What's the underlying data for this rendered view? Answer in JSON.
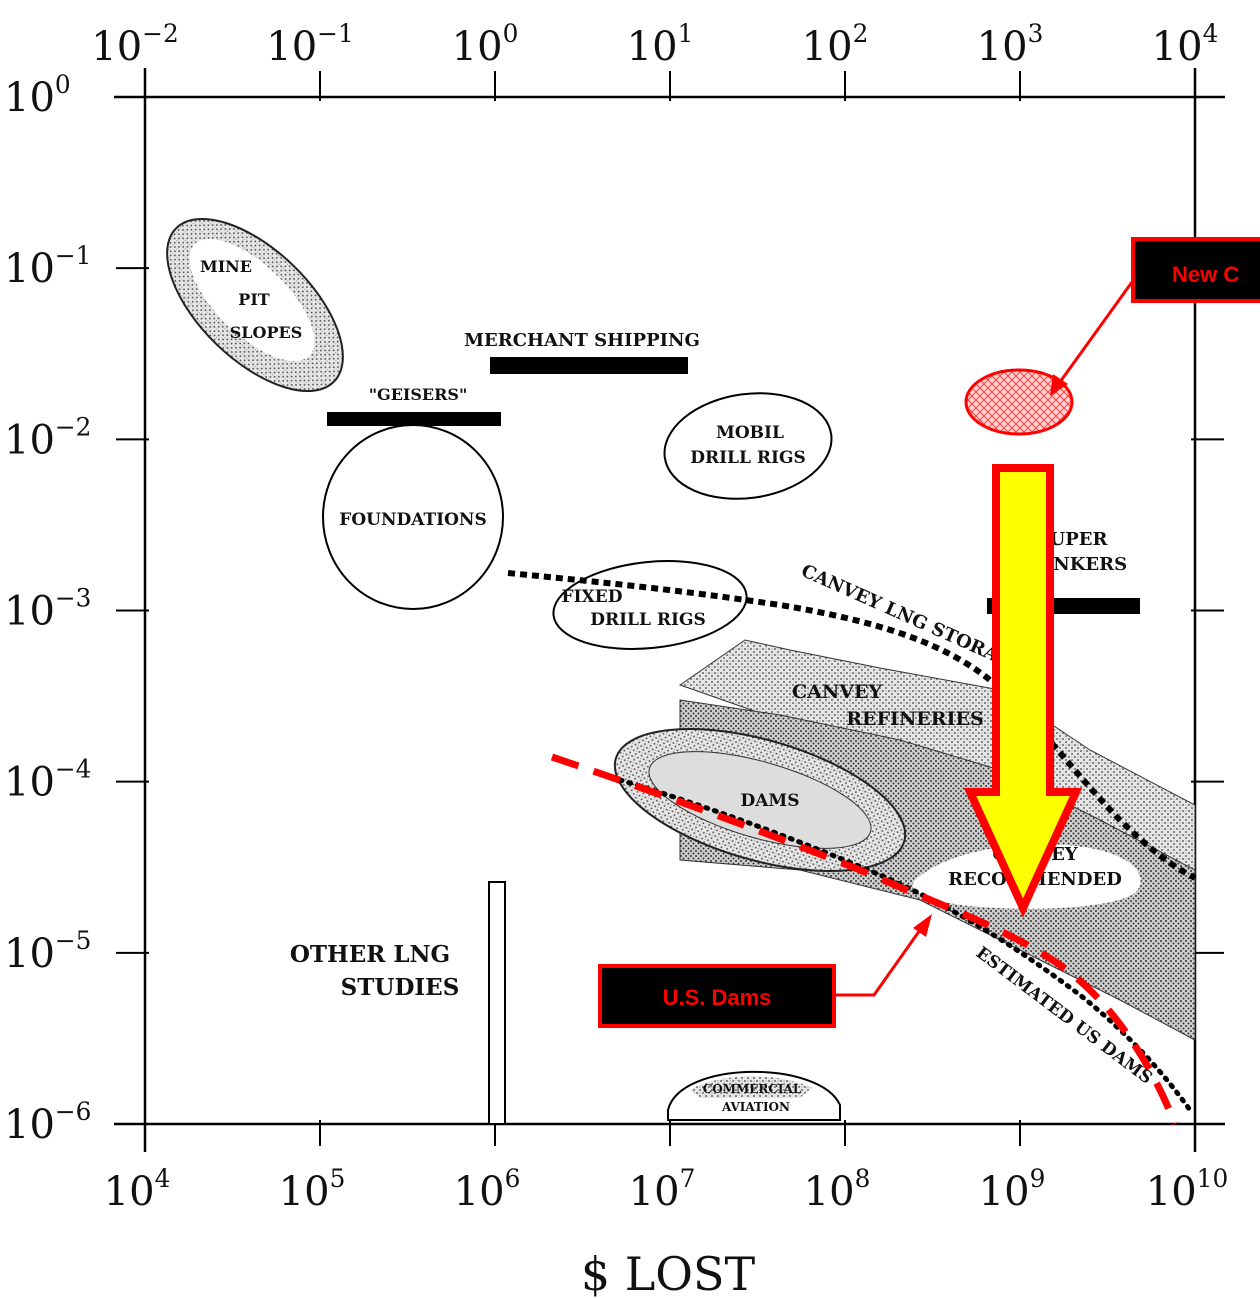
{
  "chart_data": {
    "type": "scatter",
    "title": "",
    "xlabel": "$ LOST",
    "ylabel": "",
    "x_scale": "log",
    "y_scale": "log",
    "xlim": [
      10000,
      10000000000
    ],
    "ylim": [
      1e-06,
      1
    ],
    "top_axis_lim": [
      0.01,
      10000
    ],
    "grid": false,
    "bottom_ticks": [
      {
        "base": "10",
        "exp": "4",
        "value": 10000
      },
      {
        "base": "10",
        "exp": "5",
        "value": 100000
      },
      {
        "base": "10",
        "exp": "6",
        "value": 1000000
      },
      {
        "base": "10",
        "exp": "7",
        "value": 10000000
      },
      {
        "base": "10",
        "exp": "8",
        "value": 100000000
      },
      {
        "base": "10",
        "exp": "9",
        "value": 1000000000
      },
      {
        "base": "10",
        "exp": "10",
        "value": 10000000000
      }
    ],
    "top_ticks": [
      {
        "base": "10",
        "exp": "−2",
        "value": 0.01
      },
      {
        "base": "10",
        "exp": "−1",
        "value": 0.1
      },
      {
        "base": "10",
        "exp": "0",
        "value": 1
      },
      {
        "base": "10",
        "exp": "1",
        "value": 10
      },
      {
        "base": "10",
        "exp": "2",
        "value": 100
      },
      {
        "base": "10",
        "exp": "3",
        "value": 1000
      },
      {
        "base": "10",
        "exp": "4",
        "value": 10000
      }
    ],
    "left_ticks": [
      {
        "base": "10",
        "exp": "0",
        "value": 1
      },
      {
        "base": "10",
        "exp": "−1",
        "value": 0.1
      },
      {
        "base": "10",
        "exp": "−2",
        "value": 0.01
      },
      {
        "base": "10",
        "exp": "−3",
        "value": 0.001
      },
      {
        "base": "10",
        "exp": "−4",
        "value": 0.0001
      },
      {
        "base": "10",
        "exp": "−5",
        "value": 1e-05
      },
      {
        "base": "10",
        "exp": "−6",
        "value": 1e-06
      }
    ],
    "regions": [
      {
        "label_lines": [
          "MINE",
          "PIT",
          "SLOPES"
        ],
        "shape": "ellipse",
        "fill": "stipple",
        "x": 63000,
        "y": 0.033
      },
      {
        "label_lines": [
          "\"GEISERS\""
        ],
        "shape": "bar",
        "x_range": [
          110000,
          1100000
        ],
        "y": 0.0107
      },
      {
        "label_lines": [
          "MERCHANT SHIPPING"
        ],
        "shape": "bar",
        "x_range": [
          950000,
          12000000
        ],
        "y": 0.025
      },
      {
        "label_lines": [
          "FOUNDATIONS"
        ],
        "shape": "ellipse",
        "fill": "none",
        "x": 330000,
        "y": 0.0037
      },
      {
        "label_lines": [
          "MOBIL",
          "DRILL RIGS"
        ],
        "shape": "ellipse",
        "fill": "none",
        "x": 23000000,
        "y": 0.0081
      },
      {
        "label_lines": [
          "FIXED",
          "DRILL RIGS"
        ],
        "shape": "ellipse",
        "fill": "none",
        "x": 7000000,
        "y": 0.00088
      },
      {
        "label_lines": [
          "SUPER",
          "TANKERS"
        ],
        "shape": "bar",
        "x_range": [
          650000000,
          4800000000
        ],
        "y": 0.00102
      },
      {
        "label_lines": [
          "CANVEY",
          "REFINERIES"
        ],
        "shape": "band",
        "fill": "stipple",
        "x": 300000000,
        "y": 0.00025
      },
      {
        "label_lines": [
          "DAMS"
        ],
        "shape": "ellipse",
        "fill": "stipple",
        "x": 20000000,
        "y": 6.5e-05
      },
      {
        "label_lines": [
          "CANVEY",
          "RECOMMENDED"
        ],
        "shape": "band",
        "fill": "stipple",
        "x": 1000000000,
        "y": 3e-05
      },
      {
        "label_lines": [
          "OTHER LNG",
          "STUDIES"
        ],
        "shape": "bar",
        "x_range": [
          950000,
          1050000
        ],
        "y_range": [
          1e-06,
          2.7e-05
        ]
      },
      {
        "label_lines": [
          "COMMERCIAL",
          "AVIATION"
        ],
        "shape": "ellipse",
        "fill": "none",
        "x": 20000000,
        "y": 1.4e-06
      }
    ],
    "series": [
      {
        "name": "CANVEY LNG STORAGE",
        "style": "dashed",
        "x": [
          1000000,
          5000000,
          20000000,
          100000000,
          300000000,
          1000000000,
          3000000000,
          10000000000
        ],
        "y": [
          0.0016,
          0.0014,
          0.0011,
          0.0008,
          0.0006,
          0.00025,
          8.5e-05,
          4e-05
        ]
      },
      {
        "name": "ESTIMATED US DAMS",
        "style": "dotted",
        "x": [
          20000000,
          50000000,
          100000000,
          300000000,
          1000000000,
          3000000000,
          8000000000
        ],
        "y": [
          8.5e-05,
          5.5e-05,
          3.8e-05,
          2.2e-05,
          8e-06,
          3.3e-06,
          1.3e-06
        ]
      },
      {
        "name": "",
        "style": "red-dashed",
        "x": [
          3000000,
          10000000,
          30000000,
          100000000,
          300000000,
          1000000000,
          3000000000,
          7500000000
        ],
        "y": [
          0.00013,
          8.5e-05,
          6e-05,
          3.7e-05,
          2e-05,
          1.1e-05,
          4.3e-06,
          1e-06
        ]
      }
    ],
    "annotations": [
      {
        "text": "New C",
        "target": {
          "x": 1000000000,
          "y": 0.0213
        }
      },
      {
        "text": "U.S. Dams",
        "target": {
          "x": 350000000,
          "y": 1.8e-05
        }
      }
    ],
    "arrow": {
      "from_y": 0.0045,
      "to_y": 2.3e-05,
      "x": 1000000000,
      "color": "#ffff00",
      "border": "#ff0000"
    }
  },
  "colors": {
    "red": "#ff0000",
    "yellow": "#ffff00",
    "black": "#000000"
  }
}
